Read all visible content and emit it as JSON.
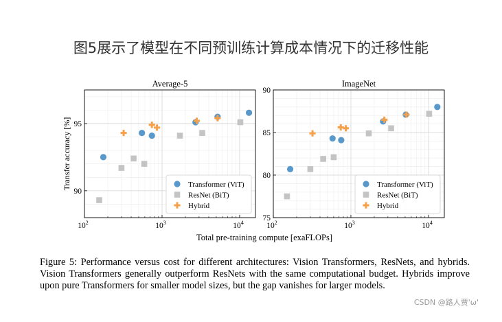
{
  "page": {
    "title": "图5展示了模型在不同预训练计算成本情况下的迁移性能",
    "caption": "Figure 5: Performance versus cost for different architectures: Vision Transformers, ResNets, and hybrids. Vision Transformers generally outperform ResNets with the same computational budget. Hybrids improve upon pure Transformers for smaller model sizes, but the gap vanishes for larger models.",
    "watermark": "CSDN @路人贾'ω'"
  },
  "colors": {
    "transformer": "#4a8fc6",
    "resnet": "#c4c4c4",
    "hybrid": "#f5a04a"
  },
  "shared": {
    "xlabel": "Total pre-training compute [exaFLOPs]"
  },
  "chart_data": [
    {
      "type": "scatter",
      "title": "Average-5",
      "ylabel": "Transfer accuracy [%]",
      "x_scale": "log",
      "xlim": [
        100,
        16000
      ],
      "ylim": [
        88,
        97.5
      ],
      "x_ticks": [
        {
          "value": 100,
          "base": "10",
          "exp": "2"
        },
        {
          "value": 1000,
          "base": "10",
          "exp": "3"
        },
        {
          "value": 10000,
          "base": "10",
          "exp": "4"
        }
      ],
      "y_ticks": [
        {
          "value": 90,
          "label": "90"
        },
        {
          "value": 95,
          "label": "95"
        }
      ],
      "grid": true,
      "legend": "bottom-right",
      "series": [
        {
          "name": "Transformer (ViT)",
          "marker": "circle",
          "color_key": "transformer",
          "points": [
            [
              175,
              92.5
            ],
            [
              550,
              94.3
            ],
            [
              740,
              94.1
            ],
            [
              2700,
              95.1
            ],
            [
              5200,
              95.5
            ],
            [
              13200,
              95.8
            ]
          ]
        },
        {
          "name": "ResNet (BiT)",
          "marker": "square",
          "color_key": "resnet",
          "points": [
            [
              155,
              89.3
            ],
            [
              300,
              91.7
            ],
            [
              430,
              92.4
            ],
            [
              590,
              92.0
            ],
            [
              1700,
              94.1
            ],
            [
              3300,
              94.3
            ],
            [
              10200,
              95.1
            ]
          ]
        },
        {
          "name": "Hybrid",
          "marker": "plus",
          "color_key": "hybrid",
          "points": [
            [
              320,
              94.3
            ],
            [
              740,
              94.9
            ],
            [
              860,
              94.7
            ],
            [
              2800,
              95.2
            ],
            [
              5200,
              95.4
            ]
          ]
        }
      ]
    },
    {
      "type": "scatter",
      "title": "ImageNet",
      "ylabel": "",
      "x_scale": "log",
      "xlim": [
        100,
        16000
      ],
      "ylim": [
        75,
        90
      ],
      "x_ticks": [
        {
          "value": 100,
          "base": "10",
          "exp": "2"
        },
        {
          "value": 1000,
          "base": "10",
          "exp": "3"
        },
        {
          "value": 10000,
          "base": "10",
          "exp": "4"
        }
      ],
      "y_ticks": [
        {
          "value": 75,
          "label": "75"
        },
        {
          "value": 80,
          "label": "80"
        },
        {
          "value": 85,
          "label": "85"
        },
        {
          "value": 90,
          "label": "90"
        }
      ],
      "grid": true,
      "legend": "bottom-right",
      "series": [
        {
          "name": "Transformer (ViT)",
          "marker": "circle",
          "color_key": "transformer",
          "points": [
            [
              165,
              80.7
            ],
            [
              580,
              84.3
            ],
            [
              750,
              84.1
            ],
            [
              2600,
              86.3
            ],
            [
              5100,
              87.1
            ],
            [
              13000,
              88.0
            ]
          ]
        },
        {
          "name": "ResNet (BiT)",
          "marker": "square",
          "color_key": "resnet",
          "points": [
            [
              150,
              77.5
            ],
            [
              300,
              80.7
            ],
            [
              440,
              81.9
            ],
            [
              600,
              82.1
            ],
            [
              1700,
              84.9
            ],
            [
              3300,
              85.5
            ],
            [
              10200,
              87.2
            ]
          ]
        },
        {
          "name": "Hybrid",
          "marker": "plus",
          "color_key": "hybrid",
          "points": [
            [
              320,
              84.9
            ],
            [
              740,
              85.6
            ],
            [
              860,
              85.5
            ],
            [
              2700,
              86.5
            ],
            [
              5200,
              87.1
            ]
          ]
        }
      ]
    }
  ]
}
